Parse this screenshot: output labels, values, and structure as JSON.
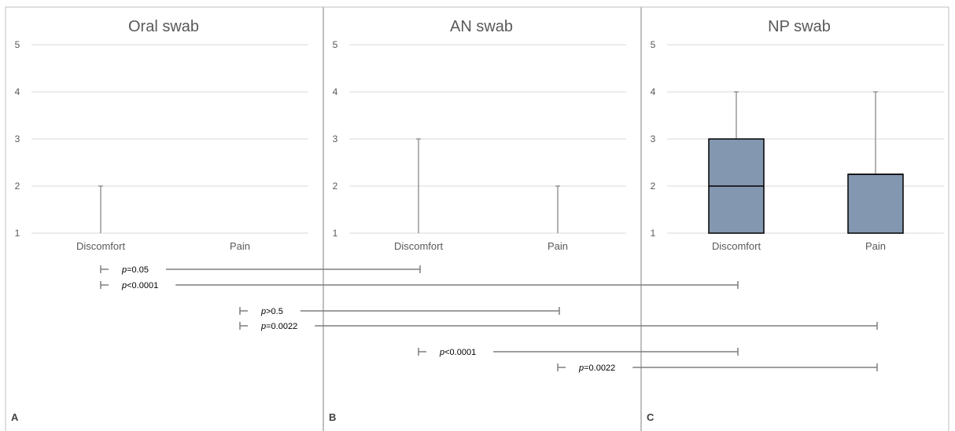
{
  "chart_data": {
    "type": "box",
    "y_range": [
      1,
      5
    ],
    "y_ticks": [
      "1",
      "2",
      "3",
      "4",
      "5"
    ],
    "categories": [
      "Discomfort",
      "Pain"
    ],
    "box_color": "#8497b0",
    "panels": [
      {
        "letter": "A",
        "title": "Oral swab",
        "boxes": [
          {
            "category": "Discomfort",
            "min": 1,
            "q1": 1,
            "median": 1,
            "q3": 1,
            "max": 2
          },
          {
            "category": "Pain",
            "min": 1,
            "q1": 1,
            "median": 1,
            "q3": 1,
            "max": 1
          }
        ]
      },
      {
        "letter": "B",
        "title": "AN swab",
        "boxes": [
          {
            "category": "Discomfort",
            "min": 1,
            "q1": 1,
            "median": 1,
            "q3": 1,
            "max": 3
          },
          {
            "category": "Pain",
            "min": 1,
            "q1": 1,
            "median": 1,
            "q3": 1,
            "max": 2
          }
        ]
      },
      {
        "letter": "C",
        "title": "NP swab",
        "boxes": [
          {
            "category": "Discomfort",
            "min": 1,
            "q1": 1,
            "median": 2,
            "q3": 3,
            "max": 4
          },
          {
            "category": "Pain",
            "min": 1,
            "q1": 1,
            "median": 2.25,
            "q3": 2.25,
            "max": 4
          }
        ]
      }
    ],
    "comparisons": [
      {
        "from_panel": 0,
        "from_category": 0,
        "to_panel": 1,
        "to_category": 0,
        "prefix": "p",
        "rest": "=0.05"
      },
      {
        "from_panel": 0,
        "from_category": 0,
        "to_panel": 2,
        "to_category": 0,
        "prefix": "p",
        "rest": "<0.0001"
      },
      {
        "from_panel": 0,
        "from_category": 1,
        "to_panel": 1,
        "to_category": 1,
        "prefix": "p",
        "rest": ">0.5"
      },
      {
        "from_panel": 0,
        "from_category": 1,
        "to_panel": 2,
        "to_category": 1,
        "prefix": "p",
        "rest": "=0.0022"
      },
      {
        "from_panel": 1,
        "from_category": 0,
        "to_panel": 2,
        "to_category": 0,
        "prefix": "p",
        "rest": "<0.0001"
      },
      {
        "from_panel": 1,
        "from_category": 1,
        "to_panel": 2,
        "to_category": 1,
        "prefix": "p",
        "rest": "=0.0022"
      }
    ]
  }
}
